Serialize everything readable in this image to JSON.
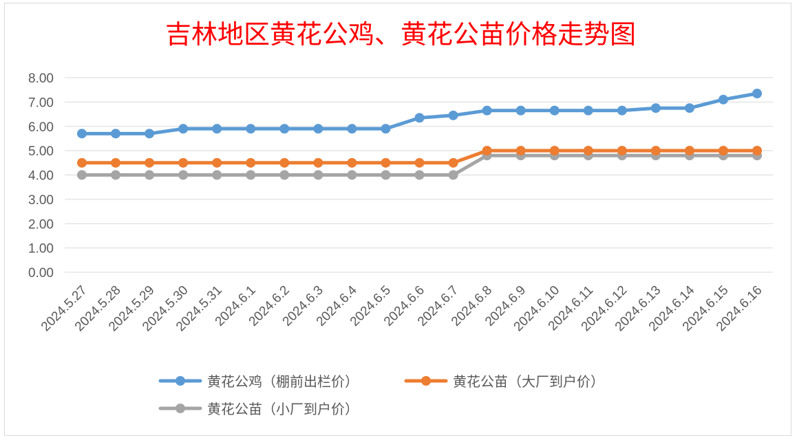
{
  "chart_data": {
    "type": "line",
    "title": "吉林地区黄花公鸡、黄花公苗价格走势图",
    "xlabel": "",
    "ylabel": "",
    "categories": [
      "2024.5.27",
      "2024.5.28",
      "2024.5.29",
      "2024.5.30",
      "2024.5.31",
      "2024.6.1",
      "2024.6.2",
      "2024.6.3",
      "2024.6.4",
      "2024.6.5",
      "2024.6.6",
      "2024.6.7",
      "2024.6.8",
      "2024.6.9",
      "2024.6.10",
      "2024.6.11",
      "2024.6.12",
      "2024.6.13",
      "2024.6.14",
      "2024.6.15",
      "2024.6.16"
    ],
    "ylim": [
      0,
      8
    ],
    "yticks": [
      "0.00",
      "1.00",
      "2.00",
      "3.00",
      "4.00",
      "5.00",
      "6.00",
      "7.00",
      "8.00"
    ],
    "grid": true,
    "legend_position": "bottom",
    "series": [
      {
        "name": "黄花公鸡（棚前出栏价）",
        "color": "#5b9bd5",
        "values": [
          5.7,
          5.7,
          5.7,
          5.9,
          5.9,
          5.9,
          5.9,
          5.9,
          5.9,
          5.9,
          6.35,
          6.45,
          6.65,
          6.65,
          6.65,
          6.65,
          6.65,
          6.75,
          6.75,
          7.1,
          7.35
        ]
      },
      {
        "name": "黄花公苗（大厂到户价）",
        "color": "#ed7d31",
        "values": [
          4.5,
          4.5,
          4.5,
          4.5,
          4.5,
          4.5,
          4.5,
          4.5,
          4.5,
          4.5,
          4.5,
          4.5,
          5.0,
          5.0,
          5.0,
          5.0,
          5.0,
          5.0,
          5.0,
          5.0,
          5.0
        ]
      },
      {
        "name": "黄花公苗（小厂到户价）",
        "color": "#a5a5a5",
        "values": [
          4.0,
          4.0,
          4.0,
          4.0,
          4.0,
          4.0,
          4.0,
          4.0,
          4.0,
          4.0,
          4.0,
          4.0,
          4.8,
          4.8,
          4.8,
          4.8,
          4.8,
          4.8,
          4.8,
          4.8,
          4.8
        ]
      }
    ]
  }
}
